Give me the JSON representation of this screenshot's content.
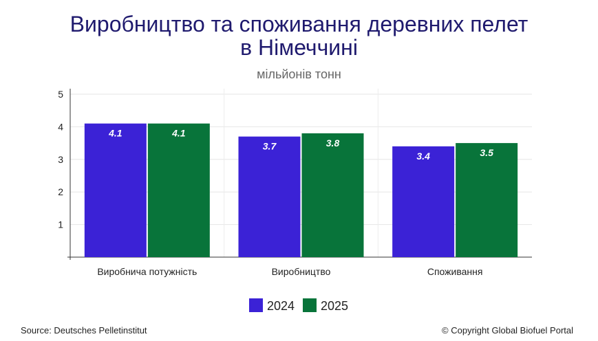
{
  "chart_data": {
    "type": "bar",
    "title_line1": "Виробництво та споживання деревних пелет",
    "title_line2": "в Німеччині",
    "subtitle": "мільйонів тонн",
    "categories": [
      "Виробнича потужність",
      "Виробництво",
      "Споживання"
    ],
    "series": [
      {
        "name": "2024",
        "values": [
          4.1,
          3.7,
          3.4
        ],
        "color": "#3b22d6"
      },
      {
        "name": "2025",
        "values": [
          4.1,
          3.8,
          3.5
        ],
        "color": "#08743a"
      }
    ],
    "ylim": [
      0,
      5
    ],
    "yticks": [
      1,
      2,
      3,
      4,
      5
    ],
    "grid": true,
    "legend_position": "bottom"
  },
  "footer": {
    "source": "Source: Deutsches Pelletinstitut",
    "copyright": "© Copyright Global Biofuel Portal"
  }
}
